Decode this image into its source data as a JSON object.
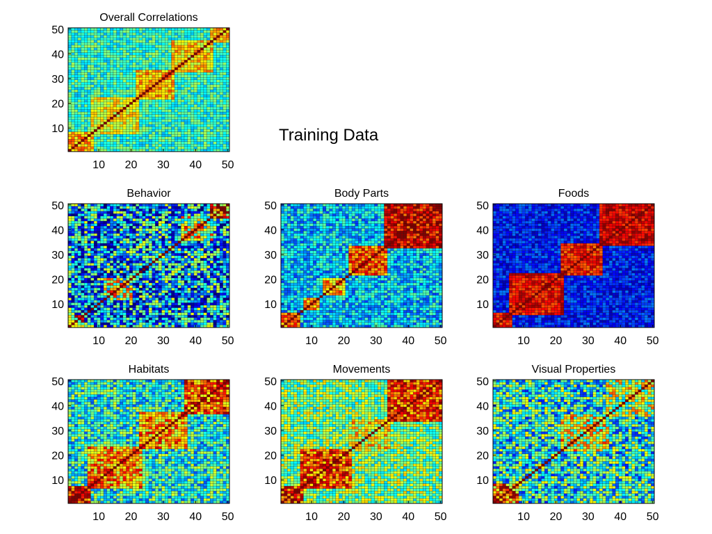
{
  "figure": {
    "suptitle": "Training Data"
  },
  "chart_data": [
    {
      "type": "heatmap",
      "title": "Overall Correlations",
      "xlabel": "",
      "ylabel": "",
      "xlim": [
        1,
        50
      ],
      "ylim": [
        1,
        50
      ],
      "xticks": [
        10,
        20,
        30,
        40,
        50
      ],
      "yticks": [
        10,
        20,
        30,
        40,
        50
      ],
      "colormap": "jet",
      "n": 50,
      "diagonal": 1.0,
      "background": 0.42,
      "blocks": [
        {
          "range": [
            1,
            8
          ],
          "value": 0.7
        },
        {
          "range": [
            8,
            22
          ],
          "value": 0.62
        },
        {
          "range": [
            22,
            33
          ],
          "value": 0.7
        },
        {
          "range": [
            33,
            45
          ],
          "value": 0.66
        },
        {
          "range": [
            45,
            50
          ],
          "value": 0.68
        }
      ],
      "noise": 0.12
    },
    {
      "type": "heatmap",
      "title": "Behavior",
      "xlim": [
        1,
        50
      ],
      "ylim": [
        1,
        50
      ],
      "xticks": [
        10,
        20,
        30,
        40,
        50
      ],
      "yticks": [
        10,
        20,
        30,
        40,
        50
      ],
      "colormap": "jet",
      "n": 50,
      "diagonal": 1.0,
      "background": 0.3,
      "blocks": [
        {
          "range": [
            1,
            5
          ],
          "value": 0.72
        },
        {
          "range": [
            12,
            20
          ],
          "value": 0.55
        },
        {
          "range": [
            36,
            45
          ],
          "value": 0.6
        },
        {
          "range": [
            45,
            50
          ],
          "value": 0.8
        }
      ],
      "noise": 0.32
    },
    {
      "type": "heatmap",
      "title": "Body Parts",
      "xlim": [
        1,
        50
      ],
      "ylim": [
        1,
        50
      ],
      "xticks": [
        10,
        20,
        30,
        40,
        50
      ],
      "yticks": [
        10,
        20,
        30,
        40,
        50
      ],
      "colormap": "jet",
      "n": 50,
      "diagonal": 1.0,
      "background": 0.33,
      "blocks": [
        {
          "range": [
            1,
            6
          ],
          "value": 0.8
        },
        {
          "range": [
            8,
            12
          ],
          "value": 0.72
        },
        {
          "range": [
            14,
            20
          ],
          "value": 0.72
        },
        {
          "range": [
            22,
            33
          ],
          "value": 0.8
        },
        {
          "range": [
            33,
            50
          ],
          "value": 0.9
        }
      ],
      "noise": 0.15
    },
    {
      "type": "heatmap",
      "title": "Foods",
      "xlim": [
        1,
        50
      ],
      "ylim": [
        1,
        50
      ],
      "xticks": [
        10,
        20,
        30,
        40,
        50
      ],
      "yticks": [
        10,
        20,
        30,
        40,
        50
      ],
      "colormap": "jet",
      "n": 50,
      "diagonal": 1.0,
      "background": 0.15,
      "blocks": [
        {
          "range": [
            1,
            6
          ],
          "value": 0.85
        },
        {
          "range": [
            6,
            22
          ],
          "value": 0.88
        },
        {
          "range": [
            22,
            34
          ],
          "value": 0.85
        },
        {
          "range": [
            34,
            50
          ],
          "value": 0.9
        }
      ],
      "noise": 0.1
    },
    {
      "type": "heatmap",
      "title": "Habitats",
      "xlim": [
        1,
        50
      ],
      "ylim": [
        1,
        50
      ],
      "xticks": [
        10,
        20,
        30,
        40,
        50
      ],
      "yticks": [
        10,
        20,
        30,
        40,
        50
      ],
      "colormap": "jet",
      "n": 50,
      "diagonal": 1.0,
      "background": 0.4,
      "blocks": [
        {
          "range": [
            1,
            7
          ],
          "value": 0.85
        },
        {
          "range": [
            7,
            23
          ],
          "value": 0.72
        },
        {
          "range": [
            23,
            37
          ],
          "value": 0.72
        },
        {
          "range": [
            37,
            50
          ],
          "value": 0.78
        }
      ],
      "noise": 0.2
    },
    {
      "type": "heatmap",
      "title": "Movements",
      "xlim": [
        1,
        50
      ],
      "ylim": [
        1,
        50
      ],
      "xticks": [
        10,
        20,
        30,
        40,
        50
      ],
      "yticks": [
        10,
        20,
        30,
        40,
        50
      ],
      "colormap": "jet",
      "n": 50,
      "diagonal": 1.0,
      "background": 0.5,
      "blocks": [
        {
          "range": [
            1,
            7
          ],
          "value": 0.85
        },
        {
          "range": [
            7,
            22
          ],
          "value": 0.8
        },
        {
          "range": [
            22,
            34
          ],
          "value": 0.62
        },
        {
          "range": [
            34,
            50
          ],
          "value": 0.82
        }
      ],
      "noise": 0.18
    },
    {
      "type": "heatmap",
      "title": "Visual Properties",
      "xlim": [
        1,
        50
      ],
      "ylim": [
        1,
        50
      ],
      "xticks": [
        10,
        20,
        30,
        40,
        50
      ],
      "yticks": [
        10,
        20,
        30,
        40,
        50
      ],
      "colormap": "jet",
      "n": 50,
      "diagonal": 1.0,
      "background": 0.4,
      "blocks": [
        {
          "range": [
            1,
            8
          ],
          "value": 0.75
        },
        {
          "range": [
            22,
            36
          ],
          "value": 0.6
        },
        {
          "range": [
            36,
            50
          ],
          "value": 0.55
        }
      ],
      "noise": 0.25
    }
  ]
}
